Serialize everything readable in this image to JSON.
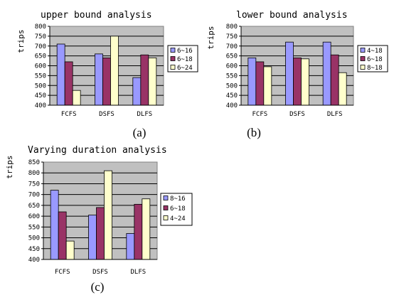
{
  "chart_data": [
    {
      "panel_caption": "(a)",
      "type": "bar",
      "title": "upper bound analysis",
      "ylabel": "trips",
      "xlabel": "",
      "categories": [
        "FCFS",
        "DSFS",
        "DLFS"
      ],
      "series": [
        {
          "name": "6~16",
          "values": [
            710,
            660,
            540
          ]
        },
        {
          "name": "6~18",
          "values": [
            620,
            640,
            655
          ]
        },
        {
          "name": "6~24",
          "values": [
            475,
            750,
            640
          ]
        }
      ],
      "ylim": [
        400,
        800
      ],
      "yticks": [
        "400",
        "450",
        "500",
        "550",
        "600",
        "650",
        "700",
        "750",
        "800"
      ],
      "grid": true,
      "legend_position": "right"
    },
    {
      "panel_caption": "(b)",
      "type": "bar",
      "title": "lower bound analysis",
      "ylabel": "trips",
      "xlabel": "",
      "categories": [
        "FCFS",
        "DSFS",
        "DLFS"
      ],
      "series": [
        {
          "name": "4~18",
          "values": [
            640,
            720,
            720
          ]
        },
        {
          "name": "6~18",
          "values": [
            620,
            640,
            655
          ]
        },
        {
          "name": "8~18",
          "values": [
            595,
            635,
            565
          ]
        }
      ],
      "ylim": [
        400,
        800
      ],
      "yticks": [
        "400",
        "450",
        "500",
        "550",
        "600",
        "650",
        "700",
        "750",
        "800"
      ],
      "grid": true,
      "legend_position": "right"
    },
    {
      "panel_caption": "(c)",
      "type": "bar",
      "title": "Varying duration analysis",
      "ylabel": "trips",
      "xlabel": "",
      "categories": [
        "FCFS",
        "DSFS",
        "DLFS"
      ],
      "series": [
        {
          "name": "8~16",
          "values": [
            720,
            605,
            520
          ]
        },
        {
          "name": "6~18",
          "values": [
            620,
            640,
            655
          ]
        },
        {
          "name": "4~24",
          "values": [
            485,
            810,
            680
          ]
        }
      ],
      "ylim": [
        400,
        850
      ],
      "yticks": [
        "400",
        "450",
        "500",
        "550",
        "600",
        "650",
        "700",
        "750",
        "800",
        "850"
      ],
      "grid": true,
      "legend_position": "right"
    }
  ],
  "colors": {
    "plot_background": "#c0c0c0",
    "grid": "#000000",
    "series": [
      "#9999ff",
      "#993366",
      "#ffffcc"
    ],
    "bar_outline": "#000000"
  }
}
